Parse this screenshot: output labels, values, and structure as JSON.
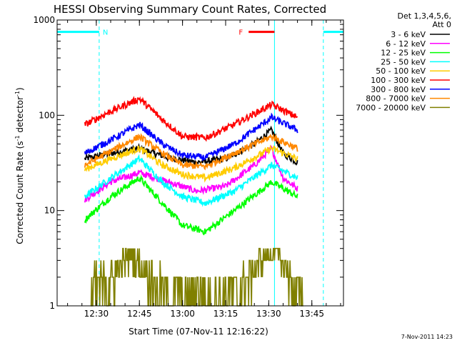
{
  "chart_data": {
    "type": "line",
    "title": "HESSI Observing Summary Count Rates, Corrected",
    "xlabel": "Start Time (07-Nov-11 12:16:22)",
    "ylabel_main": "Corrected Count Rate (s",
    "ylabel_sup1": "-1",
    "ylabel_mid": " detector",
    "ylabel_sup2": "-1",
    "ylabel_end": ")",
    "yscale": "log",
    "ylim": [
      1,
      1000
    ],
    "xlim": [
      "12:16:22",
      "13:56:00"
    ],
    "x_ticks": [
      "12:30",
      "12:45",
      "13:00",
      "13:15",
      "13:30",
      "13:45"
    ],
    "y_ticks": [
      "1",
      "10",
      "100",
      "1000"
    ],
    "legend_header_1": "Det 1,3,4,5,6,",
    "legend_header_2": "Att 0",
    "legend_position": "right",
    "series": [
      {
        "name": "3 - 6 keV",
        "color": "#000000",
        "points": [
          [
            "12:26",
            35
          ],
          [
            "12:35",
            40
          ],
          [
            "12:45",
            45
          ],
          [
            "12:55",
            36
          ],
          [
            "13:05",
            32
          ],
          [
            "13:15",
            35
          ],
          [
            "13:25",
            50
          ],
          [
            "13:31",
            70
          ],
          [
            "13:35",
            40
          ],
          [
            "13:40",
            32
          ]
        ]
      },
      {
        "name": "6 - 12 keV",
        "color": "#ff00ff",
        "points": [
          [
            "12:26",
            13
          ],
          [
            "12:35",
            20
          ],
          [
            "12:45",
            25
          ],
          [
            "12:55",
            20
          ],
          [
            "13:05",
            16
          ],
          [
            "13:15",
            18
          ],
          [
            "13:25",
            30
          ],
          [
            "13:31",
            45
          ],
          [
            "13:35",
            22
          ],
          [
            "13:40",
            17
          ]
        ]
      },
      {
        "name": "12 - 25 keV",
        "color": "#00ff00",
        "points": [
          [
            "12:26",
            8
          ],
          [
            "12:35",
            14
          ],
          [
            "12:45",
            22
          ],
          [
            "12:53",
            12
          ],
          [
            "13:00",
            7
          ],
          [
            "13:08",
            6
          ],
          [
            "13:18",
            10
          ],
          [
            "13:31",
            20
          ],
          [
            "13:40",
            14
          ]
        ]
      },
      {
        "name": "25 - 50 keV",
        "color": "#00ffff",
        "points": [
          [
            "12:26",
            14
          ],
          [
            "12:35",
            22
          ],
          [
            "12:45",
            35
          ],
          [
            "12:53",
            20
          ],
          [
            "13:00",
            14
          ],
          [
            "13:08",
            12
          ],
          [
            "13:18",
            16
          ],
          [
            "13:31",
            30
          ],
          [
            "13:40",
            22
          ]
        ]
      },
      {
        "name": "50 - 100 keV",
        "color": "#ffcc00",
        "points": [
          [
            "12:26",
            27
          ],
          [
            "12:35",
            35
          ],
          [
            "12:45",
            45
          ],
          [
            "12:53",
            30
          ],
          [
            "13:00",
            24
          ],
          [
            "13:08",
            22
          ],
          [
            "13:18",
            28
          ],
          [
            "13:31",
            45
          ],
          [
            "13:40",
            35
          ]
        ]
      },
      {
        "name": "100 - 300 keV",
        "color": "#ff0000",
        "points": [
          [
            "12:26",
            80
          ],
          [
            "12:35",
            110
          ],
          [
            "12:45",
            150
          ],
          [
            "12:53",
            90
          ],
          [
            "13:00",
            60
          ],
          [
            "13:08",
            58
          ],
          [
            "13:18",
            80
          ],
          [
            "13:31",
            130
          ],
          [
            "13:40",
            95
          ]
        ]
      },
      {
        "name": "300 - 800 keV",
        "color": "#0000ff",
        "points": [
          [
            "12:26",
            40
          ],
          [
            "12:35",
            55
          ],
          [
            "12:45",
            80
          ],
          [
            "12:53",
            50
          ],
          [
            "13:00",
            38
          ],
          [
            "13:08",
            36
          ],
          [
            "13:18",
            50
          ],
          [
            "13:31",
            95
          ],
          [
            "13:40",
            70
          ]
        ]
      },
      {
        "name": "800 - 7000 keV",
        "color": "#ff8800",
        "points": [
          [
            "12:26",
            30
          ],
          [
            "12:35",
            42
          ],
          [
            "12:45",
            60
          ],
          [
            "12:53",
            40
          ],
          [
            "13:00",
            30
          ],
          [
            "13:08",
            29
          ],
          [
            "13:18",
            40
          ],
          [
            "13:31",
            60
          ],
          [
            "13:40",
            45
          ]
        ]
      },
      {
        "name": "7000 - 20000 keV",
        "color": "#808000",
        "points": [
          [
            "12:28",
            1.5
          ],
          [
            "12:35",
            2
          ],
          [
            "12:42",
            3.5
          ],
          [
            "12:50",
            2
          ],
          [
            "12:55",
            1.2
          ],
          [
            "13:20",
            1.5
          ],
          [
            "13:27",
            3
          ],
          [
            "13:32",
            3.8
          ],
          [
            "13:38",
            2
          ],
          [
            "13:42",
            1
          ]
        ]
      }
    ],
    "annotations": [
      {
        "text": "N",
        "color": "#00ffff",
        "x_range": [
          "12:16:22",
          "12:31"
        ],
        "y": 750
      },
      {
        "text": "F",
        "color": "#ff0000",
        "x_range": [
          "13:23",
          "13:32"
        ],
        "y": 750
      },
      {
        "text": "",
        "color": "#00ffff",
        "x_range": [
          "13:49",
          "13:56"
        ],
        "y": 750
      }
    ],
    "vlines": [
      {
        "x": "12:31",
        "color": "#00ffff",
        "dashed": true
      },
      {
        "x": "13:32",
        "color": "#00ffff",
        "dashed": false
      },
      {
        "x": "13:49",
        "color": "#00ffff",
        "dashed": true
      }
    ],
    "timestamp": "7-Nov-2011 14:23"
  }
}
